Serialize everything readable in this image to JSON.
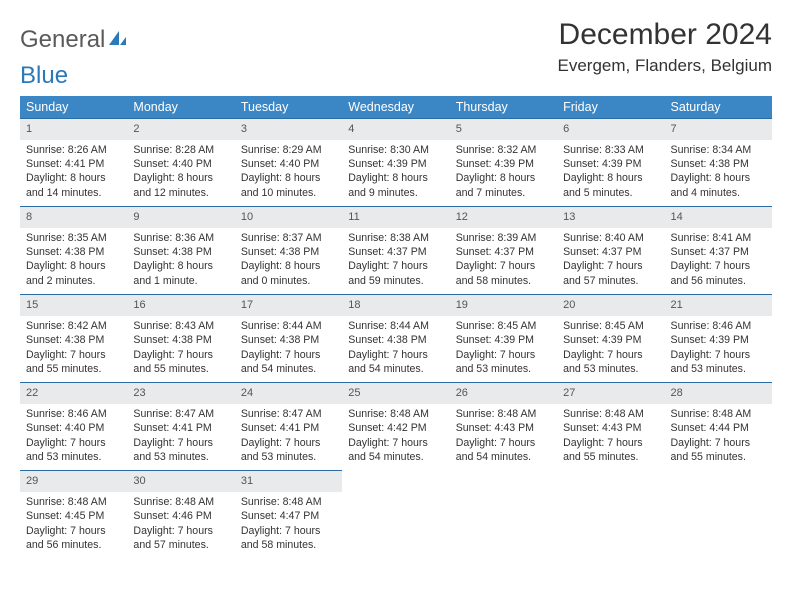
{
  "logo": {
    "text1": "General",
    "text2": "Blue"
  },
  "title": "December 2024",
  "location": "Evergem, Flanders, Belgium",
  "colors": {
    "header_bg": "#3b86c4",
    "daynum_bg": "#e9eaec",
    "rule": "#2b6da3"
  },
  "weekdays": [
    "Sunday",
    "Monday",
    "Tuesday",
    "Wednesday",
    "Thursday",
    "Friday",
    "Saturday"
  ],
  "weeks": [
    [
      {
        "n": "1",
        "sr": "Sunrise: 8:26 AM",
        "ss": "Sunset: 4:41 PM",
        "dl": "Daylight: 8 hours and 14 minutes."
      },
      {
        "n": "2",
        "sr": "Sunrise: 8:28 AM",
        "ss": "Sunset: 4:40 PM",
        "dl": "Daylight: 8 hours and 12 minutes."
      },
      {
        "n": "3",
        "sr": "Sunrise: 8:29 AM",
        "ss": "Sunset: 4:40 PM",
        "dl": "Daylight: 8 hours and 10 minutes."
      },
      {
        "n": "4",
        "sr": "Sunrise: 8:30 AM",
        "ss": "Sunset: 4:39 PM",
        "dl": "Daylight: 8 hours and 9 minutes."
      },
      {
        "n": "5",
        "sr": "Sunrise: 8:32 AM",
        "ss": "Sunset: 4:39 PM",
        "dl": "Daylight: 8 hours and 7 minutes."
      },
      {
        "n": "6",
        "sr": "Sunrise: 8:33 AM",
        "ss": "Sunset: 4:39 PM",
        "dl": "Daylight: 8 hours and 5 minutes."
      },
      {
        "n": "7",
        "sr": "Sunrise: 8:34 AM",
        "ss": "Sunset: 4:38 PM",
        "dl": "Daylight: 8 hours and 4 minutes."
      }
    ],
    [
      {
        "n": "8",
        "sr": "Sunrise: 8:35 AM",
        "ss": "Sunset: 4:38 PM",
        "dl": "Daylight: 8 hours and 2 minutes."
      },
      {
        "n": "9",
        "sr": "Sunrise: 8:36 AM",
        "ss": "Sunset: 4:38 PM",
        "dl": "Daylight: 8 hours and 1 minute."
      },
      {
        "n": "10",
        "sr": "Sunrise: 8:37 AM",
        "ss": "Sunset: 4:38 PM",
        "dl": "Daylight: 8 hours and 0 minutes."
      },
      {
        "n": "11",
        "sr": "Sunrise: 8:38 AM",
        "ss": "Sunset: 4:37 PM",
        "dl": "Daylight: 7 hours and 59 minutes."
      },
      {
        "n": "12",
        "sr": "Sunrise: 8:39 AM",
        "ss": "Sunset: 4:37 PM",
        "dl": "Daylight: 7 hours and 58 minutes."
      },
      {
        "n": "13",
        "sr": "Sunrise: 8:40 AM",
        "ss": "Sunset: 4:37 PM",
        "dl": "Daylight: 7 hours and 57 minutes."
      },
      {
        "n": "14",
        "sr": "Sunrise: 8:41 AM",
        "ss": "Sunset: 4:37 PM",
        "dl": "Daylight: 7 hours and 56 minutes."
      }
    ],
    [
      {
        "n": "15",
        "sr": "Sunrise: 8:42 AM",
        "ss": "Sunset: 4:38 PM",
        "dl": "Daylight: 7 hours and 55 minutes."
      },
      {
        "n": "16",
        "sr": "Sunrise: 8:43 AM",
        "ss": "Sunset: 4:38 PM",
        "dl": "Daylight: 7 hours and 55 minutes."
      },
      {
        "n": "17",
        "sr": "Sunrise: 8:44 AM",
        "ss": "Sunset: 4:38 PM",
        "dl": "Daylight: 7 hours and 54 minutes."
      },
      {
        "n": "18",
        "sr": "Sunrise: 8:44 AM",
        "ss": "Sunset: 4:38 PM",
        "dl": "Daylight: 7 hours and 54 minutes."
      },
      {
        "n": "19",
        "sr": "Sunrise: 8:45 AM",
        "ss": "Sunset: 4:39 PM",
        "dl": "Daylight: 7 hours and 53 minutes."
      },
      {
        "n": "20",
        "sr": "Sunrise: 8:45 AM",
        "ss": "Sunset: 4:39 PM",
        "dl": "Daylight: 7 hours and 53 minutes."
      },
      {
        "n": "21",
        "sr": "Sunrise: 8:46 AM",
        "ss": "Sunset: 4:39 PM",
        "dl": "Daylight: 7 hours and 53 minutes."
      }
    ],
    [
      {
        "n": "22",
        "sr": "Sunrise: 8:46 AM",
        "ss": "Sunset: 4:40 PM",
        "dl": "Daylight: 7 hours and 53 minutes."
      },
      {
        "n": "23",
        "sr": "Sunrise: 8:47 AM",
        "ss": "Sunset: 4:41 PM",
        "dl": "Daylight: 7 hours and 53 minutes."
      },
      {
        "n": "24",
        "sr": "Sunrise: 8:47 AM",
        "ss": "Sunset: 4:41 PM",
        "dl": "Daylight: 7 hours and 53 minutes."
      },
      {
        "n": "25",
        "sr": "Sunrise: 8:48 AM",
        "ss": "Sunset: 4:42 PM",
        "dl": "Daylight: 7 hours and 54 minutes."
      },
      {
        "n": "26",
        "sr": "Sunrise: 8:48 AM",
        "ss": "Sunset: 4:43 PM",
        "dl": "Daylight: 7 hours and 54 minutes."
      },
      {
        "n": "27",
        "sr": "Sunrise: 8:48 AM",
        "ss": "Sunset: 4:43 PM",
        "dl": "Daylight: 7 hours and 55 minutes."
      },
      {
        "n": "28",
        "sr": "Sunrise: 8:48 AM",
        "ss": "Sunset: 4:44 PM",
        "dl": "Daylight: 7 hours and 55 minutes."
      }
    ],
    [
      {
        "n": "29",
        "sr": "Sunrise: 8:48 AM",
        "ss": "Sunset: 4:45 PM",
        "dl": "Daylight: 7 hours and 56 minutes."
      },
      {
        "n": "30",
        "sr": "Sunrise: 8:48 AM",
        "ss": "Sunset: 4:46 PM",
        "dl": "Daylight: 7 hours and 57 minutes."
      },
      {
        "n": "31",
        "sr": "Sunrise: 8:48 AM",
        "ss": "Sunset: 4:47 PM",
        "dl": "Daylight: 7 hours and 58 minutes."
      },
      null,
      null,
      null,
      null
    ]
  ]
}
